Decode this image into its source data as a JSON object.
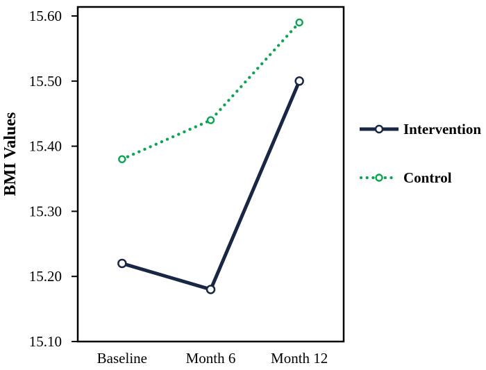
{
  "chart_data": {
    "type": "line",
    "title": "",
    "xlabel": "",
    "ylabel": "BMI Values",
    "categories": [
      "Baseline",
      "Month 6",
      "Month 12"
    ],
    "series": [
      {
        "name": "Intervention",
        "values": [
          15.22,
          15.18,
          15.5
        ],
        "color": "#1a2744",
        "line_style": "solid",
        "marker": "open-circle"
      },
      {
        "name": "Control",
        "values": [
          15.38,
          15.44,
          15.59
        ],
        "color": "#0aa552",
        "line_style": "dotted",
        "marker": "open-circle"
      }
    ],
    "ylim": [
      15.1,
      15.6
    ],
    "ytick_labels": [
      "15.10",
      "15.20",
      "15.30",
      "15.40",
      "15.50",
      "15.60"
    ],
    "ytick_values": [
      15.1,
      15.2,
      15.3,
      15.4,
      15.5,
      15.6
    ],
    "grid": false,
    "plot_border": "box",
    "legend_position": "right",
    "axis_color": "#000000",
    "background_color": "#ffffff"
  }
}
